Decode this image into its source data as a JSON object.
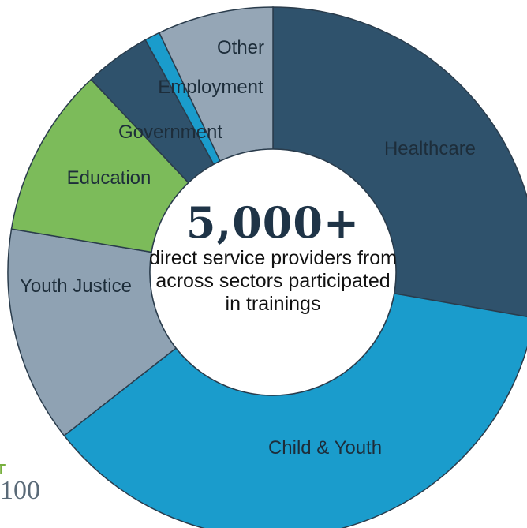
{
  "chart_data": {
    "type": "pie",
    "title": "",
    "categories": [
      "Healthcare",
      "Child & Youth",
      "Youth Justice",
      "Education",
      "Government",
      "Employment",
      "Other"
    ],
    "values": [
      29.5,
      39,
      14,
      11,
      4.3,
      1,
      7.5
    ],
    "colors": [
      "#2f526c",
      "#1a9ccc",
      "#8fa2b3",
      "#7cbb5a",
      "#2f526c",
      "#1a9ccc",
      "#95a6b6"
    ],
    "donut": true,
    "center_headline": "5,000+",
    "center_text": "direct service providers from across sectors participated in trainings"
  },
  "corner_logo": {
    "top_fragment": "T",
    "bottom_fragment": "100"
  }
}
